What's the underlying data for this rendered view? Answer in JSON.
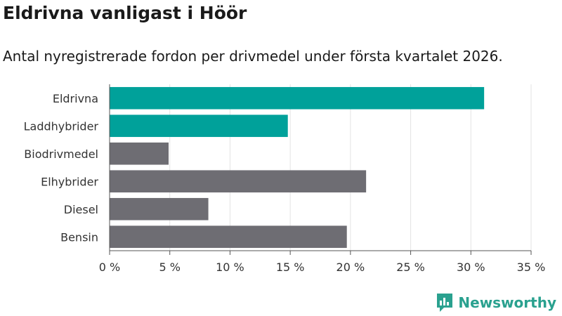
{
  "header": {
    "title": "Eldrivna vanligast i Höör",
    "subtitle": "Antal nyregistrerade fordon per drivmedel under första kvartalet 2026."
  },
  "brand": {
    "name": "Newsworthy",
    "logo_icon": "bar-chart-bubble-icon",
    "color": "#2aa18f"
  },
  "chart_data": {
    "type": "bar",
    "orientation": "horizontal",
    "title": "Eldrivna vanligast i Höör",
    "subtitle": "Antal nyregistrerade fordon per drivmedel under första kvartalet 2026.",
    "categories": [
      "Eldrivna",
      "Laddhybrider",
      "Biodrivmedel",
      "Elhybrider",
      "Diesel",
      "Bensin"
    ],
    "values": [
      31.1,
      14.8,
      4.9,
      21.3,
      8.2,
      19.7
    ],
    "unit": "%",
    "xlim": [
      0,
      35
    ],
    "xticks": [
      0,
      5,
      10,
      15,
      20,
      25,
      30,
      35
    ],
    "xtick_labels": [
      "0 %",
      "5 %",
      "10 %",
      "15 %",
      "20 %",
      "25 %",
      "30 %",
      "35 %"
    ],
    "xlabel": "",
    "ylabel": "",
    "grid": true,
    "colors": {
      "highlight": "#00a19a",
      "default": "#6e6d73",
      "grid": "#e3e3e3",
      "axis": "#555555"
    },
    "highlighted": [
      "Eldrivna",
      "Laddhybrider"
    ]
  }
}
